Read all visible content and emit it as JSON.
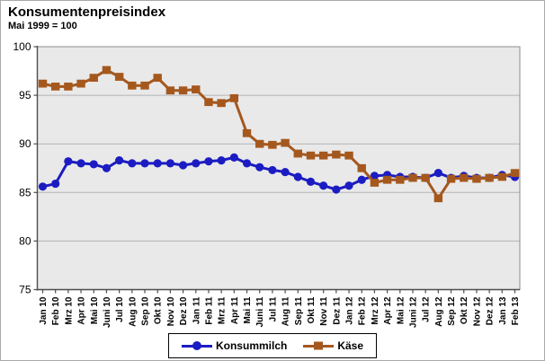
{
  "header": {
    "title": "Konsumentenpreisindex",
    "subtitle": "Mai 1999 = 100"
  },
  "chart_data": {
    "type": "line",
    "title": "Konsumentenpreisindex",
    "subtitle": "Mai 1999 = 100",
    "categories": [
      "Jan 10",
      "Feb 10",
      "Mrz 10",
      "Apr 10",
      "Mai 10",
      "Juni 10",
      "Jul 10",
      "Aug 10",
      "Sep 10",
      "Okt 10",
      "Nov 10",
      "Dez 10",
      "Jan 11",
      "Feb 11",
      "Mrz 11",
      "Apr 11",
      "Mai 11",
      "Juni 11",
      "Jul 11",
      "Aug 11",
      "Sep 11",
      "Okt 11",
      "Nov 11",
      "Dez 11",
      "Jan 12",
      "Feb 12",
      "Mrz 12",
      "Apr 12",
      "Mai 12",
      "Juni 12",
      "Jul 12",
      "Aug 12",
      "Sep 12",
      "Okt 12",
      "Nov 12",
      "Dez 12",
      "Jan 13",
      "Feb 13"
    ],
    "series": [
      {
        "name": "Konsummilch",
        "marker": "circle",
        "color": "#1c1cc3",
        "values": [
          85.6,
          85.9,
          88.2,
          88.0,
          87.9,
          87.5,
          88.3,
          88.0,
          88.0,
          88.0,
          88.0,
          87.8,
          88.0,
          88.2,
          88.3,
          88.6,
          88.0,
          87.6,
          87.3,
          87.1,
          86.6,
          86.1,
          85.7,
          85.3,
          85.7,
          86.3,
          86.7,
          86.8,
          86.6,
          86.6,
          86.5,
          87.0,
          86.5,
          86.7,
          86.5,
          86.5,
          86.8,
          86.6
        ]
      },
      {
        "name": "Käse",
        "marker": "square",
        "color": "#a5581e",
        "values": [
          96.2,
          95.9,
          95.9,
          96.2,
          96.8,
          97.6,
          96.9,
          96.0,
          96.0,
          96.8,
          95.5,
          95.5,
          95.6,
          94.3,
          94.2,
          94.7,
          91.1,
          90.0,
          89.9,
          90.1,
          89.0,
          88.8,
          88.8,
          88.9,
          88.8,
          87.5,
          86.0,
          86.3,
          86.3,
          86.5,
          86.5,
          84.4,
          86.4,
          86.5,
          86.4,
          86.5,
          86.6,
          87.0
        ]
      }
    ],
    "ylim": [
      75,
      100
    ],
    "yticks": [
      75,
      80,
      85,
      90,
      95,
      100
    ],
    "grid": true,
    "legend_position": "bottom",
    "plot_bg": "#e9e9e9",
    "grid_color": "#b3b3b3",
    "frame_color": "#8c8c8c",
    "axis_color": "#4d4d4d",
    "tick_label_color": "#000000"
  }
}
